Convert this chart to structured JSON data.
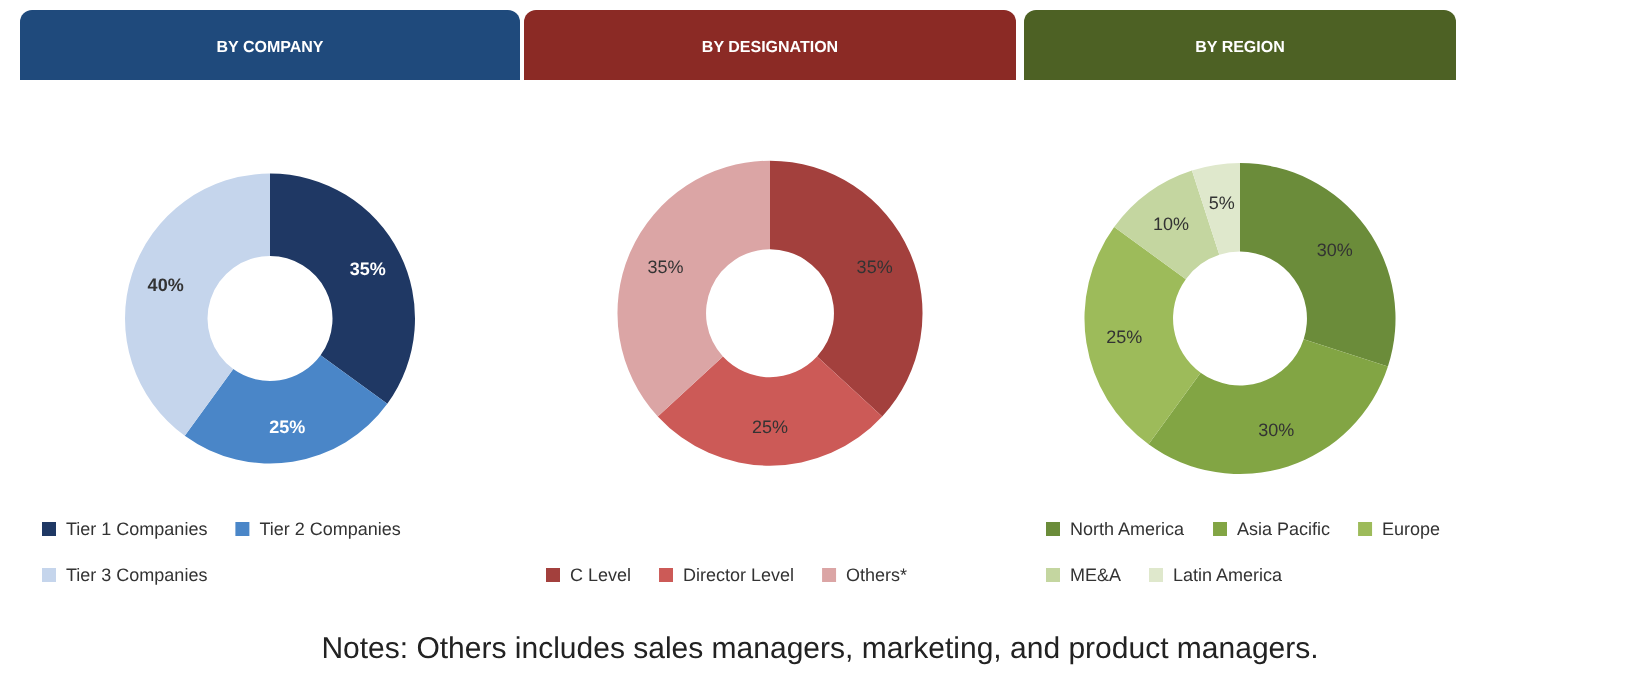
{
  "chart_data": [
    {
      "type": "donut",
      "title": "BY COMPANY",
      "categories": [
        "Tier 1 Companies",
        "Tier 2 Companies",
        "Tier 3 Companies"
      ],
      "values": [
        35,
        25,
        40
      ],
      "value_labels": [
        "35%",
        "25%",
        "40%"
      ],
      "colors": [
        "#1f3864",
        "#4a86c8",
        "#c5d5ec"
      ],
      "legend": "bottom"
    },
    {
      "type": "donut",
      "title": "BY DESIGNATION",
      "categories": [
        "C Level",
        "Director Level",
        "Others*"
      ],
      "values": [
        35,
        25,
        35
      ],
      "value_labels": [
        "35%",
        "25%",
        "35%"
      ],
      "colors": [
        "#a3403d",
        "#cc5a57",
        "#dba5a5"
      ],
      "legend": "bottom",
      "annotations": [
        "Notes: Others includes sales managers, marketing, and product managers."
      ]
    },
    {
      "type": "donut",
      "title": "BY REGION",
      "categories": [
        "North America",
        "Asia Pacific",
        "Europe",
        "ME&A",
        "Latin America"
      ],
      "values": [
        30,
        30,
        25,
        10,
        5
      ],
      "value_labels": [
        "30%",
        "30%",
        "25%",
        "10%",
        "5%"
      ],
      "colors": [
        "#6b8c3a",
        "#82a544",
        "#9dbb5a",
        "#c4d6a0",
        "#dfe8cc"
      ],
      "legend": "bottom"
    }
  ]
}
